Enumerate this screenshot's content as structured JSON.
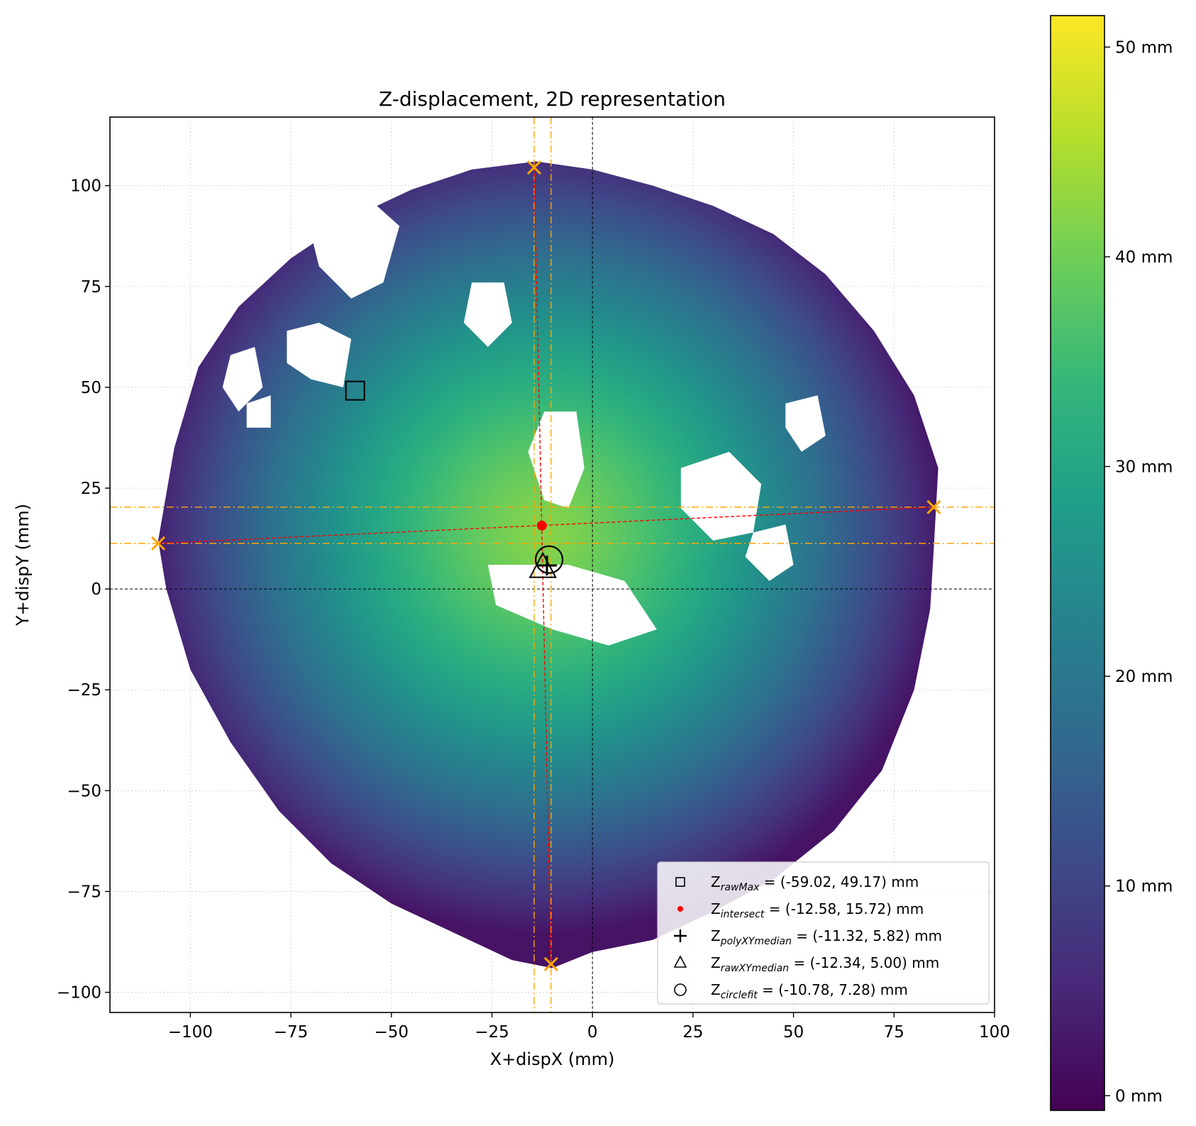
{
  "chart_data": {
    "type": "scatter",
    "title": "Z-displacement, 2D representation",
    "xlabel": "X+dispX (mm)",
    "ylabel": "Y+dispY (mm)",
    "xlim": [
      -120,
      100
    ],
    "ylim": [
      -105,
      117
    ],
    "xticks": [
      -100,
      -75,
      -50,
      -25,
      0,
      25,
      50,
      75,
      100
    ],
    "yticks": [
      -100,
      -75,
      -50,
      -25,
      0,
      25,
      50,
      75,
      100
    ],
    "grid": true,
    "colormap": "viridis",
    "colorbar": {
      "range": [
        -0.7,
        51.5
      ],
      "ticks": [
        0,
        10,
        20,
        30,
        40,
        50
      ],
      "tick_labels": [
        "0 mm",
        "10 mm",
        "20 mm",
        "30 mm",
        "40 mm",
        "50 mm"
      ]
    },
    "surface": {
      "description_free": true,
      "center": [
        -12,
        14
      ],
      "peak_z": 42,
      "edge_z": 2
    },
    "edge_points": [
      {
        "x": -14.5,
        "y": 104.5
      },
      {
        "x": -10.3,
        "y": -93.0
      },
      {
        "x": -108.0,
        "y": 11.3
      },
      {
        "x": 84.9,
        "y": 20.3
      }
    ],
    "edge_lines": {
      "vertical_x": [
        -14.5,
        -10.3
      ],
      "horizontal_y": [
        11.3,
        20.3
      ]
    },
    "fit_lines": [
      {
        "from": [
          -14.5,
          104.5
        ],
        "to": [
          -10.3,
          -93.0
        ]
      },
      {
        "from": [
          -108.0,
          11.3
        ],
        "to": [
          84.9,
          20.3
        ]
      }
    ],
    "markers": {
      "rawMax": {
        "x": -59.02,
        "y": 49.17
      },
      "intersect": {
        "x": -12.58,
        "y": 15.72
      },
      "polyXYmedian": {
        "x": -11.32,
        "y": 5.82
      },
      "rawXYmedian": {
        "x": -12.34,
        "y": 5.0
      },
      "circlefit": {
        "x": -10.78,
        "y": 7.28
      }
    },
    "legend": {
      "placement": "lower-right",
      "entries": [
        {
          "sub": "rawMax",
          "text": " = (-59.02, 49.17) mm",
          "marker": "square"
        },
        {
          "sub": "intersect",
          "text": " = (-12.58, 15.72) mm",
          "marker": "dot"
        },
        {
          "sub": "polyXYmedian",
          "text": " = (-11.32, 5.82) mm",
          "marker": "plus"
        },
        {
          "sub": "rawXYmedian",
          "text": " = (-12.34, 5.00) mm",
          "marker": "triangle"
        },
        {
          "sub": "circlefit",
          "text": " = (-10.78, 7.28) mm",
          "marker": "circle"
        }
      ]
    },
    "colors": {
      "edge_marker": "#ffa500",
      "fit_line": "#ff0000",
      "intersect_dot": "#ff0000",
      "zero_line": "#000000"
    }
  }
}
